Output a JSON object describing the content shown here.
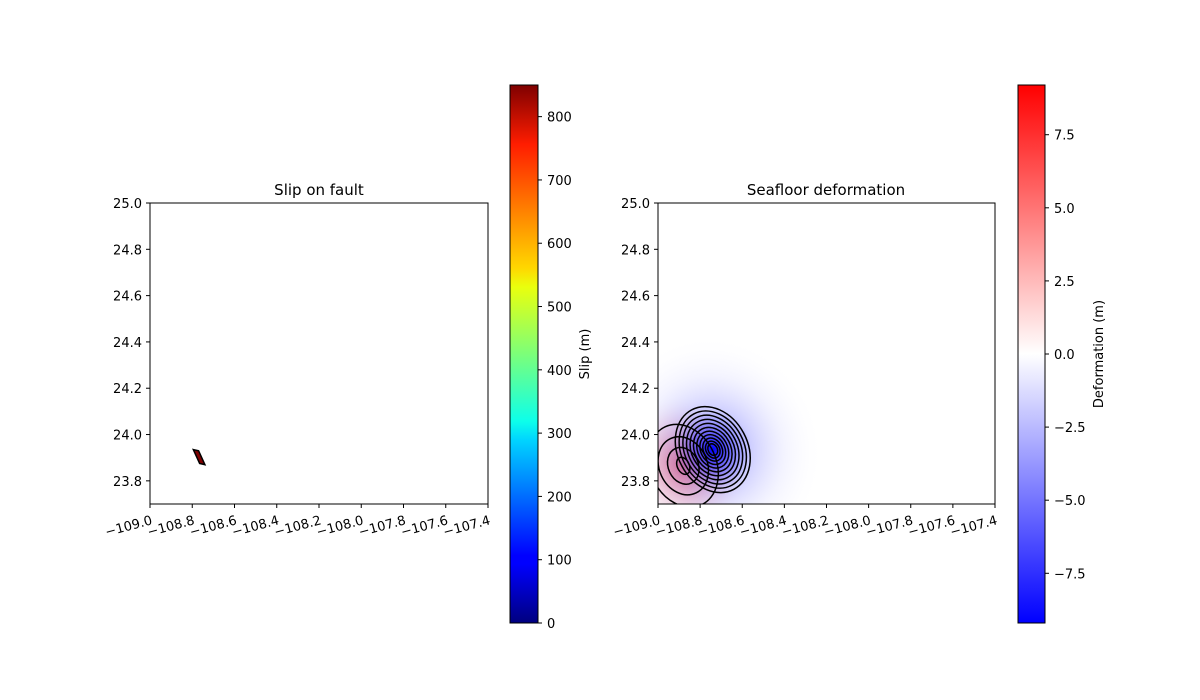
{
  "chart_data": [
    {
      "type": "heatmap",
      "title": "Slip on fault",
      "xlabel": "",
      "ylabel": "",
      "xlim": [
        -109.0,
        -107.4
      ],
      "ylim": [
        23.7,
        25.0
      ],
      "xticks": [
        -109.0,
        -108.8,
        -108.6,
        -108.4,
        -108.2,
        -108.0,
        -107.8,
        -107.6,
        -107.4
      ],
      "xtick_labels": [
        "−109.0",
        "−108.8",
        "−108.6",
        "−108.4",
        "−108.2",
        "−108.0",
        "−107.8",
        "−107.6",
        "−107.4"
      ],
      "yticks": [
        23.8,
        24.0,
        24.2,
        24.4,
        24.6,
        24.8,
        25.0
      ],
      "ytick_labels": [
        "23.8",
        "24.0",
        "24.2",
        "24.4",
        "24.6",
        "24.8",
        "25.0"
      ],
      "grid": false,
      "fault_patch": {
        "corners": [
          [
            -108.795,
            23.935
          ],
          [
            -108.77,
            23.93
          ],
          [
            -108.74,
            23.87
          ],
          [
            -108.765,
            23.875
          ]
        ],
        "slip": 850,
        "color": "#7f0000"
      },
      "colorbar": {
        "label": "Slip (m)",
        "colormap": "jet",
        "range": [
          0,
          850
        ],
        "ticks": [
          0,
          100,
          200,
          300,
          400,
          500,
          600,
          700,
          800
        ],
        "tick_labels": [
          "0",
          "100",
          "200",
          "300",
          "400",
          "500",
          "600",
          "700",
          "800"
        ]
      }
    },
    {
      "type": "heatmap",
      "title": "Seafloor deformation",
      "xlabel": "",
      "ylabel": "",
      "xlim": [
        -109.0,
        -107.4
      ],
      "ylim": [
        23.7,
        25.0
      ],
      "xticks": [
        -109.0,
        -108.8,
        -108.6,
        -108.4,
        -108.2,
        -108.0,
        -107.8,
        -107.6,
        -107.4
      ],
      "xtick_labels": [
        "−109.0",
        "−108.8",
        "−108.6",
        "−108.4",
        "−108.2",
        "−108.0",
        "−107.8",
        "−107.6",
        "−107.4"
      ],
      "yticks": [
        23.8,
        24.0,
        24.2,
        24.4,
        24.6,
        24.8,
        25.0
      ],
      "ytick_labels": [
        "23.8",
        "24.0",
        "24.2",
        "24.4",
        "24.6",
        "24.8",
        "25.0"
      ],
      "grid": false,
      "uplift_lobe": {
        "center": [
          -108.88,
          23.865
        ],
        "peak": 8.5,
        "contour_levels": 4
      },
      "subsidence_lobe": {
        "center": [
          -108.74,
          23.935
        ],
        "peak": -9.2,
        "contour_levels": 11
      },
      "colorbar": {
        "label": "Deformation (m)",
        "colormap": "bwr",
        "range": [
          -9.2,
          9.2
        ],
        "ticks": [
          -7.5,
          -5.0,
          -2.5,
          0.0,
          2.5,
          5.0,
          7.5
        ],
        "tick_labels": [
          "−7.5",
          "−5.0",
          "−2.5",
          "0.0",
          "2.5",
          "5.0",
          "7.5"
        ]
      }
    }
  ]
}
